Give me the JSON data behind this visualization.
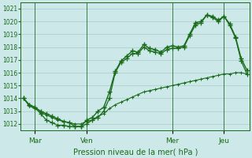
{
  "title": "Pression niveau de la mer( hPa )",
  "bg_color": "#cce8e8",
  "grid_color": "#aacccc",
  "line_color": "#1a6b1a",
  "ylim": [
    1011.5,
    1021.5
  ],
  "yticks": [
    1012,
    1013,
    1014,
    1015,
    1016,
    1017,
    1018,
    1019,
    1020,
    1021
  ],
  "day_labels": [
    "Mar",
    "Ven",
    "Mer",
    "Jeu"
  ],
  "day_positions": [
    2,
    11,
    26,
    35
  ],
  "n_points": 40,
  "series1_x": [
    0,
    1,
    2,
    3,
    4,
    5,
    6,
    7,
    8,
    9,
    10,
    11,
    12,
    13,
    14,
    15,
    16,
    17,
    18,
    19,
    20,
    21,
    22,
    23,
    24,
    25,
    26,
    27,
    28,
    29,
    30,
    31,
    32,
    33,
    34,
    35,
    36,
    37,
    38,
    39
  ],
  "series1": [
    1014.0,
    1013.5,
    1013.3,
    1013.0,
    1012.8,
    1012.6,
    1012.4,
    1012.2,
    1012.1,
    1011.8,
    1011.8,
    1012.3,
    1012.5,
    1013.0,
    1013.3,
    1014.5,
    1016.1,
    1016.9,
    1017.3,
    1017.7,
    1017.6,
    1018.2,
    1017.9,
    1017.8,
    1017.6,
    1018.0,
    1018.1,
    1018.0,
    1018.1,
    1019.0,
    1019.9,
    1020.0,
    1020.5,
    1020.4,
    1020.1,
    1020.4,
    1019.8,
    1018.8,
    1017.1,
    1016.2
  ],
  "series2": [
    1014.0,
    1013.5,
    1013.3,
    1012.8,
    1012.3,
    1012.1,
    1011.9,
    1011.9,
    1011.8,
    1011.8,
    1011.8,
    1012.0,
    1012.3,
    1012.5,
    1013.0,
    1014.0,
    1016.0,
    1016.8,
    1017.1,
    1017.5,
    1017.5,
    1018.0,
    1017.7,
    1017.6,
    1017.5,
    1017.8,
    1017.9,
    1017.9,
    1018.0,
    1018.9,
    1019.7,
    1019.9,
    1020.5,
    1020.3,
    1020.0,
    1020.4,
    1019.7,
    1018.7,
    1016.9,
    1015.9
  ],
  "series3": [
    1014.0,
    1013.4,
    1013.2,
    1012.9,
    1012.7,
    1012.5,
    1012.3,
    1012.2,
    1012.1,
    1012.0,
    1012.0,
    1012.2,
    1012.3,
    1012.6,
    1012.8,
    1013.2,
    1013.5,
    1013.7,
    1013.9,
    1014.1,
    1014.3,
    1014.5,
    1014.6,
    1014.7,
    1014.8,
    1014.9,
    1015.0,
    1015.1,
    1015.2,
    1015.3,
    1015.4,
    1015.5,
    1015.6,
    1015.7,
    1015.8,
    1015.9,
    1015.9,
    1016.0,
    1016.0,
    1015.9
  ]
}
